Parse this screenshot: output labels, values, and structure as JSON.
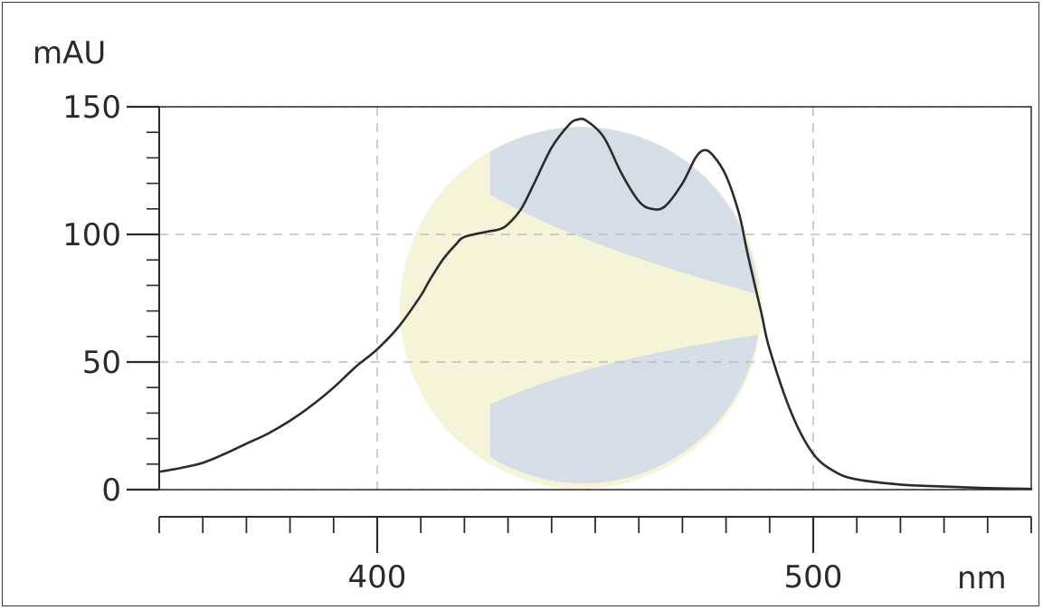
{
  "chart_data": {
    "type": "line",
    "title": "",
    "ylabel": "mAU",
    "xlabel": "nm",
    "xlim": [
      350,
      550
    ],
    "ylim": [
      0,
      150
    ],
    "x_ticks": [
      400,
      500
    ],
    "y_ticks": [
      0,
      50,
      100,
      150
    ],
    "x_tick_labels": [
      "400",
      "500"
    ],
    "y_tick_labels": [
      "0",
      "50",
      "100",
      "150"
    ],
    "grid": true,
    "series": [
      {
        "color": "#2b2b2b",
        "x": [
          350,
          355,
          360,
          365,
          370,
          375,
          380,
          385,
          390,
          395,
          400,
          405,
          410,
          412,
          415,
          418,
          420,
          425,
          428,
          430,
          433,
          436,
          440,
          444,
          446,
          448,
          452,
          456,
          460,
          463,
          466,
          470,
          473,
          475,
          477,
          480,
          483,
          485,
          488,
          490,
          495,
          500,
          505,
          510,
          520,
          530,
          540,
          550
        ],
        "y": [
          7,
          8.5,
          10.5,
          14,
          18,
          22,
          27,
          33,
          40,
          48,
          55,
          64,
          76,
          82,
          90,
          96,
          99,
          101,
          102,
          104,
          110,
          120,
          134,
          143,
          145,
          144.5,
          138,
          124,
          113,
          110,
          111,
          120,
          130,
          133,
          131,
          123,
          108,
          92,
          70,
          55,
          30,
          14,
          7,
          4,
          2,
          1.2,
          0.6,
          0.3
        ]
      }
    ]
  },
  "colors": {
    "line": "#2b2b2b",
    "axis": "#2b2b2b",
    "grid": "#bdbdbd",
    "watermark_blue": "#d5dde6",
    "watermark_yellow": "#f5f4d8"
  },
  "watermark": {
    "icon": "logo-watermark-icon"
  }
}
